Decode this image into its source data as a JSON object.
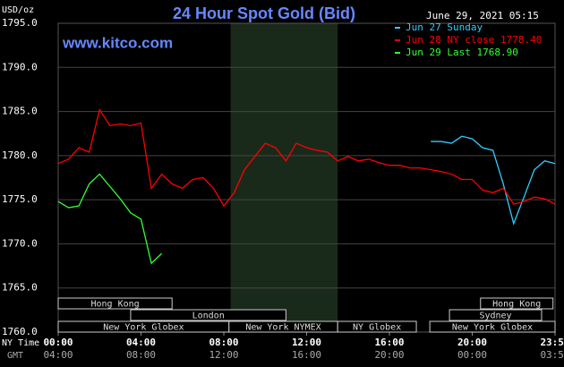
{
  "chart_data": {
    "type": "line",
    "title": "24 Hour Spot Gold (Bid)",
    "unit_label": "USD/oz",
    "timestamp": "June 29, 2021 05:15",
    "source": "www.kitco.com",
    "x_row_labels": [
      "NY Time",
      "GMT"
    ],
    "xlim": [
      0,
      24
    ],
    "xticks": [
      {
        "value": 0,
        "label": "00:00"
      },
      {
        "value": 4,
        "label": "04:00"
      },
      {
        "value": 8,
        "label": "08:00"
      },
      {
        "value": 12,
        "label": "12:00"
      },
      {
        "value": 16,
        "label": "16:00"
      },
      {
        "value": 20,
        "label": "20:00"
      },
      {
        "value": 24,
        "label": "23:59"
      }
    ],
    "gmt_labels": [
      "04:00",
      "08:00",
      "12:00",
      "16:00",
      "20:00",
      "00:00",
      "03:59"
    ],
    "ylim": [
      1760,
      1795
    ],
    "yticks": [
      {
        "value": 1760,
        "label": "1760.0"
      },
      {
        "value": 1765,
        "label": "1765.0"
      },
      {
        "value": 1770,
        "label": "1770.0"
      },
      {
        "value": 1775,
        "label": "1775.0"
      },
      {
        "value": 1780,
        "label": "1780.0"
      },
      {
        "value": 1785,
        "label": "1785.0"
      },
      {
        "value": 1790,
        "label": "1790.0"
      },
      {
        "value": 1795,
        "label": "1795.0"
      }
    ],
    "grid": true,
    "legend": "top-right",
    "shade_x": [
      8.33,
      13.5
    ],
    "x": [
      0,
      0.5,
      1,
      1.5,
      2,
      2.5,
      3,
      3.5,
      4,
      4.5,
      5,
      5.5,
      6,
      6.5,
      7,
      7.5,
      8,
      8.5,
      9,
      9.5,
      10,
      10.5,
      11,
      11.5,
      12,
      12.5,
      13,
      13.5,
      14,
      14.5,
      15,
      15.5,
      16,
      16.5,
      17,
      17.5,
      18,
      18.5,
      19,
      19.5,
      20,
      20.5,
      21,
      21.5,
      22,
      22.5,
      23,
      23.5,
      24
    ],
    "series": [
      {
        "name": "Jun 27 Sunday",
        "color": "#33ccff",
        "values": [
          null,
          null,
          null,
          null,
          null,
          null,
          null,
          null,
          null,
          null,
          null,
          null,
          null,
          null,
          null,
          null,
          null,
          null,
          null,
          null,
          null,
          null,
          null,
          null,
          null,
          null,
          null,
          null,
          null,
          null,
          null,
          null,
          null,
          null,
          null,
          null,
          1781.6,
          1781.6,
          1781.4,
          1782.2,
          1781.9,
          1780.9,
          1780.6,
          1776.8,
          1772.3,
          1775.3,
          1778.4,
          1779.4,
          1779.1
        ]
      },
      {
        "name": "Jun 28 NY close 1778.40",
        "color": "#ff0000",
        "values": [
          1779.1,
          1779.6,
          1780.9,
          1780.4,
          1785.2,
          1783.4,
          1783.6,
          1783.4,
          1783.7,
          1776.3,
          1777.9,
          1776.8,
          1776.3,
          1777.3,
          1777.5,
          1776.3,
          1774.3,
          1775.8,
          1778.4,
          1779.9,
          1781.4,
          1780.9,
          1779.4,
          1781.4,
          1780.9,
          1780.6,
          1780.4,
          1779.4,
          1779.9,
          1779.4,
          1779.6,
          1779.2,
          1778.9,
          1778.9,
          1778.6,
          1778.6,
          1778.4,
          1778.2,
          1777.9,
          1777.3,
          1777.3,
          1776.1,
          1775.8,
          1776.3,
          1774.5,
          1774.8,
          1775.3,
          1775.1,
          1774.5
        ]
      },
      {
        "name": "Jun 29 Last 1768.90",
        "color": "#33ff33",
        "values": [
          1774.8,
          1774.1,
          1774.3,
          1776.8,
          1777.9,
          1776.5,
          1775.1,
          1773.5,
          1772.8,
          1767.8,
          1768.9,
          null,
          null,
          null,
          null,
          null,
          null,
          null,
          null,
          null,
          null,
          null,
          null,
          null,
          null,
          null,
          null,
          null,
          null,
          null,
          null,
          null,
          null,
          null,
          null,
          null,
          null,
          null,
          null,
          null,
          null,
          null,
          null,
          null,
          null,
          null,
          null,
          null,
          null
        ]
      }
    ],
    "sessions": [
      {
        "label": "Hong Kong",
        "row": 0,
        "start": 0,
        "end": 5.5
      },
      {
        "label": "Hong Kong",
        "row": 0,
        "start": 20.4,
        "end": 23.9
      },
      {
        "label": "London",
        "row": 1,
        "start": 3.5,
        "end": 11
      },
      {
        "label": "Sydney",
        "row": 1,
        "start": 18.9,
        "end": 23.35
      },
      {
        "label": "New York Globex",
        "row": 2,
        "start": 0,
        "end": 8.25
      },
      {
        "label": "New York NYMEX",
        "row": 2,
        "start": 8.25,
        "end": 13.5
      },
      {
        "label": "NY Globex",
        "row": 2,
        "start": 13.5,
        "end": 17.3
      },
      {
        "label": "New York Globex",
        "row": 2,
        "start": 17.95,
        "end": 24
      }
    ]
  }
}
